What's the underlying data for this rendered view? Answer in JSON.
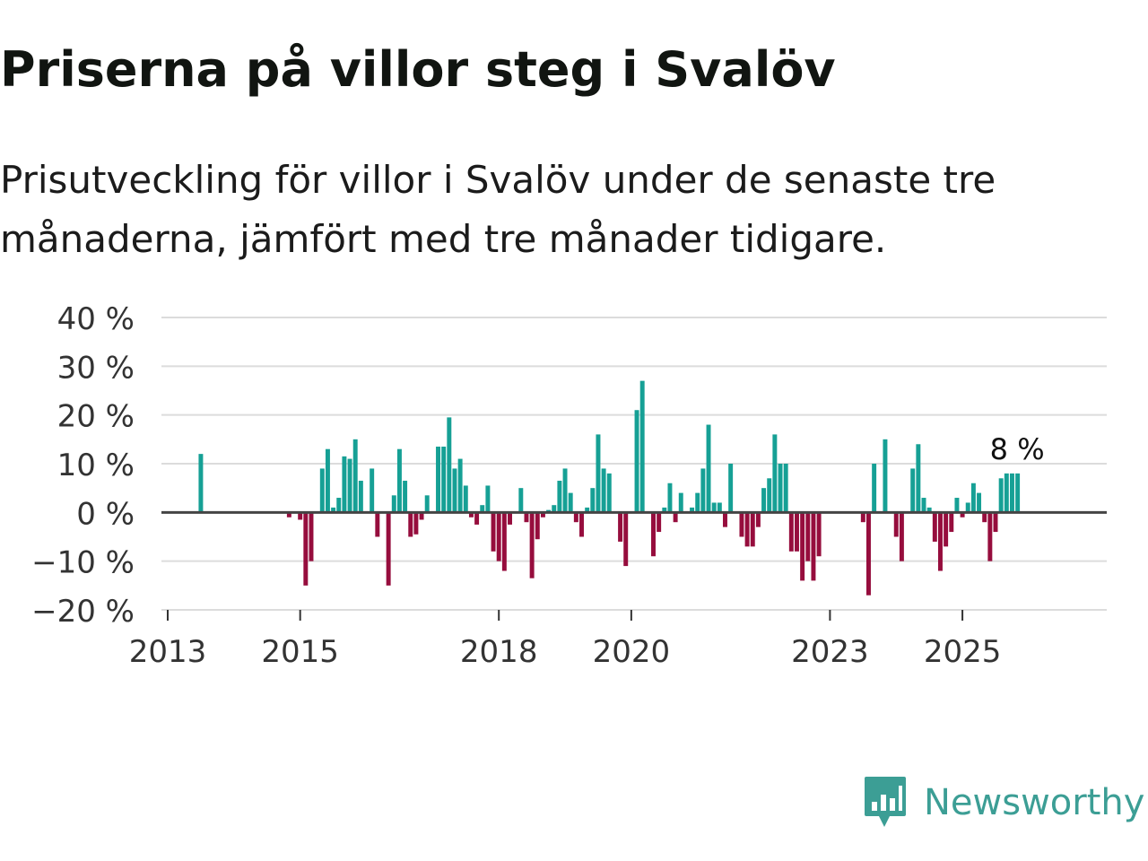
{
  "title": "Priserna på villor steg i Svalöv",
  "subtitle": "Prisutveckling för villor i Svalöv under de senaste tre månaderna, jämfört med tre månader tidigare.",
  "brand": {
    "name": "Newsworthy",
    "color": "#3c9e95",
    "icon": "newsworthy-logo-icon"
  },
  "colors": {
    "positive": "#16a095",
    "negative": "#960d3d",
    "grid": "#dcdcdc",
    "zero": "#444444"
  },
  "chart_data": {
    "type": "bar",
    "title": "Priserna på villor steg i Svalöv",
    "xlabel": "",
    "ylabel": "",
    "unit": "%",
    "ylim": [
      -20,
      40
    ],
    "yticks": [
      40,
      30,
      20,
      10,
      0,
      -10,
      -20
    ],
    "ytick_labels": [
      "40 %",
      "30 %",
      "20 %",
      "10 %",
      "0 %",
      "−10 %",
      "−20 %"
    ],
    "x_start": "2013-01",
    "x_end": "2026-08",
    "xticks": [
      "2013",
      "2015",
      "2018",
      "2020",
      "2023",
      "2025"
    ],
    "last_value_label": "8 %",
    "series": [
      {
        "name": "Prisutveckling",
        "points": [
          {
            "x": "2013-07",
            "y": 12
          },
          {
            "x": "2014-11",
            "y": -1
          },
          {
            "x": "2015-01",
            "y": -1.5
          },
          {
            "x": "2015-02",
            "y": -15
          },
          {
            "x": "2015-03",
            "y": -10
          },
          {
            "x": "2015-05",
            "y": 9
          },
          {
            "x": "2015-06",
            "y": 13
          },
          {
            "x": "2015-07",
            "y": 1
          },
          {
            "x": "2015-08",
            "y": 3
          },
          {
            "x": "2015-09",
            "y": 11.5
          },
          {
            "x": "2015-10",
            "y": 11
          },
          {
            "x": "2015-11",
            "y": 15
          },
          {
            "x": "2015-12",
            "y": 6.5
          },
          {
            "x": "2016-02",
            "y": 9
          },
          {
            "x": "2016-03",
            "y": -5
          },
          {
            "x": "2016-05",
            "y": -15
          },
          {
            "x": "2016-06",
            "y": 3.5
          },
          {
            "x": "2016-07",
            "y": 13
          },
          {
            "x": "2016-08",
            "y": 6.5
          },
          {
            "x": "2016-09",
            "y": -5
          },
          {
            "x": "2016-10",
            "y": -4.5
          },
          {
            "x": "2016-11",
            "y": -1.5
          },
          {
            "x": "2016-12",
            "y": 3.5
          },
          {
            "x": "2017-02",
            "y": 13.5
          },
          {
            "x": "2017-03",
            "y": 13.5
          },
          {
            "x": "2017-04",
            "y": 19.5
          },
          {
            "x": "2017-05",
            "y": 9
          },
          {
            "x": "2017-06",
            "y": 11
          },
          {
            "x": "2017-07",
            "y": 5.5
          },
          {
            "x": "2017-08",
            "y": -1
          },
          {
            "x": "2017-09",
            "y": -2.5
          },
          {
            "x": "2017-10",
            "y": 1.5
          },
          {
            "x": "2017-11",
            "y": 5.5
          },
          {
            "x": "2017-12",
            "y": -8
          },
          {
            "x": "2018-01",
            "y": -10
          },
          {
            "x": "2018-02",
            "y": -12
          },
          {
            "x": "2018-03",
            "y": -2.5
          },
          {
            "x": "2018-05",
            "y": 5
          },
          {
            "x": "2018-06",
            "y": -2
          },
          {
            "x": "2018-07",
            "y": -13.5
          },
          {
            "x": "2018-08",
            "y": -5.5
          },
          {
            "x": "2018-09",
            "y": -1
          },
          {
            "x": "2018-10",
            "y": 0.5
          },
          {
            "x": "2018-11",
            "y": 1.5
          },
          {
            "x": "2018-12",
            "y": 6.5
          },
          {
            "x": "2019-01",
            "y": 9
          },
          {
            "x": "2019-02",
            "y": 4
          },
          {
            "x": "2019-03",
            "y": -2
          },
          {
            "x": "2019-04",
            "y": -5
          },
          {
            "x": "2019-05",
            "y": 1
          },
          {
            "x": "2019-06",
            "y": 5
          },
          {
            "x": "2019-07",
            "y": 16
          },
          {
            "x": "2019-08",
            "y": 9
          },
          {
            "x": "2019-09",
            "y": 8
          },
          {
            "x": "2019-11",
            "y": -6
          },
          {
            "x": "2019-12",
            "y": -11
          },
          {
            "x": "2020-02",
            "y": 21
          },
          {
            "x": "2020-03",
            "y": 27
          },
          {
            "x": "2020-05",
            "y": -9
          },
          {
            "x": "2020-06",
            "y": -4
          },
          {
            "x": "2020-07",
            "y": 1
          },
          {
            "x": "2020-08",
            "y": 6
          },
          {
            "x": "2020-09",
            "y": -2
          },
          {
            "x": "2020-10",
            "y": 4
          },
          {
            "x": "2020-12",
            "y": 1
          },
          {
            "x": "2021-01",
            "y": 4
          },
          {
            "x": "2021-02",
            "y": 9
          },
          {
            "x": "2021-03",
            "y": 18
          },
          {
            "x": "2021-04",
            "y": 2
          },
          {
            "x": "2021-05",
            "y": 2
          },
          {
            "x": "2021-06",
            "y": -3
          },
          {
            "x": "2021-07",
            "y": 10
          },
          {
            "x": "2021-09",
            "y": -5
          },
          {
            "x": "2021-10",
            "y": -7
          },
          {
            "x": "2021-11",
            "y": -7
          },
          {
            "x": "2021-12",
            "y": -3
          },
          {
            "x": "2022-01",
            "y": 5
          },
          {
            "x": "2022-02",
            "y": 7
          },
          {
            "x": "2022-03",
            "y": 16
          },
          {
            "x": "2022-04",
            "y": 10
          },
          {
            "x": "2022-05",
            "y": 10
          },
          {
            "x": "2022-06",
            "y": -8
          },
          {
            "x": "2022-07",
            "y": -8
          },
          {
            "x": "2022-08",
            "y": -14
          },
          {
            "x": "2022-09",
            "y": -10
          },
          {
            "x": "2022-10",
            "y": -14
          },
          {
            "x": "2022-11",
            "y": -9
          },
          {
            "x": "2023-07",
            "y": -2
          },
          {
            "x": "2023-08",
            "y": -17
          },
          {
            "x": "2023-09",
            "y": 10
          },
          {
            "x": "2023-11",
            "y": 15
          },
          {
            "x": "2024-01",
            "y": -5
          },
          {
            "x": "2024-02",
            "y": -10
          },
          {
            "x": "2024-04",
            "y": 9
          },
          {
            "x": "2024-05",
            "y": 14
          },
          {
            "x": "2024-06",
            "y": 3
          },
          {
            "x": "2024-07",
            "y": 1
          },
          {
            "x": "2024-08",
            "y": -6
          },
          {
            "x": "2024-09",
            "y": -12
          },
          {
            "x": "2024-10",
            "y": -7
          },
          {
            "x": "2024-11",
            "y": -4
          },
          {
            "x": "2024-12",
            "y": 3
          },
          {
            "x": "2025-01",
            "y": -1
          },
          {
            "x": "2025-02",
            "y": 2
          },
          {
            "x": "2025-03",
            "y": 6
          },
          {
            "x": "2025-04",
            "y": 4
          },
          {
            "x": "2025-05",
            "y": -2
          },
          {
            "x": "2025-06",
            "y": -10
          },
          {
            "x": "2025-07",
            "y": -4
          },
          {
            "x": "2025-08",
            "y": 7
          },
          {
            "x": "2025-09",
            "y": 8
          },
          {
            "x": "2025-10",
            "y": 8
          },
          {
            "x": "2025-11",
            "y": 8
          }
        ]
      }
    ]
  }
}
